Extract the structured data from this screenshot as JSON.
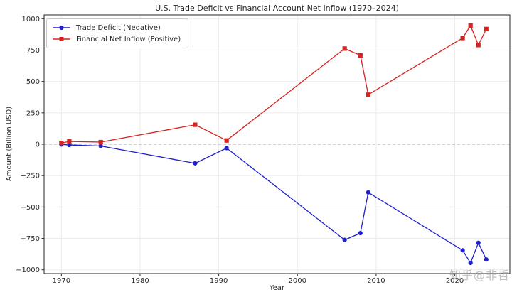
{
  "figure": {
    "watermark": "知乎@非哲"
  },
  "chart_data": {
    "type": "line",
    "title": "U.S. Trade Deficit vs Financial Account Net Inflow (1970–2024)",
    "xlabel": "Year",
    "ylabel": "Amount (Billion USD)",
    "x": [
      1970,
      1971,
      1975,
      1987,
      1991,
      2006,
      2008,
      2009,
      2021,
      2022,
      2023,
      2024
    ],
    "series": [
      {
        "name": "Trade Deficit (Negative)",
        "color": "#2020cc",
        "marker": "circle",
        "values": [
          -2,
          -6,
          -14,
          -152,
          -31,
          -762,
          -708,
          -384,
          -845,
          -945,
          -785,
          -918
        ]
      },
      {
        "name": "Financial Net Inflow (Positive)",
        "color": "#d62222",
        "marker": "square",
        "values": [
          10,
          22,
          17,
          155,
          30,
          762,
          708,
          395,
          846,
          945,
          790,
          918
        ]
      }
    ],
    "xticks": [
      1970,
      1980,
      1990,
      2000,
      2010,
      2020
    ],
    "yticks": [
      1000,
      750,
      500,
      250,
      0,
      -250,
      -500,
      -750,
      -1000
    ],
    "xlim": [
      1967.8,
      2027.0
    ],
    "ylim": [
      -1030,
      1030
    ],
    "grid": true,
    "zero_line": true,
    "legend_position": "upper left"
  }
}
